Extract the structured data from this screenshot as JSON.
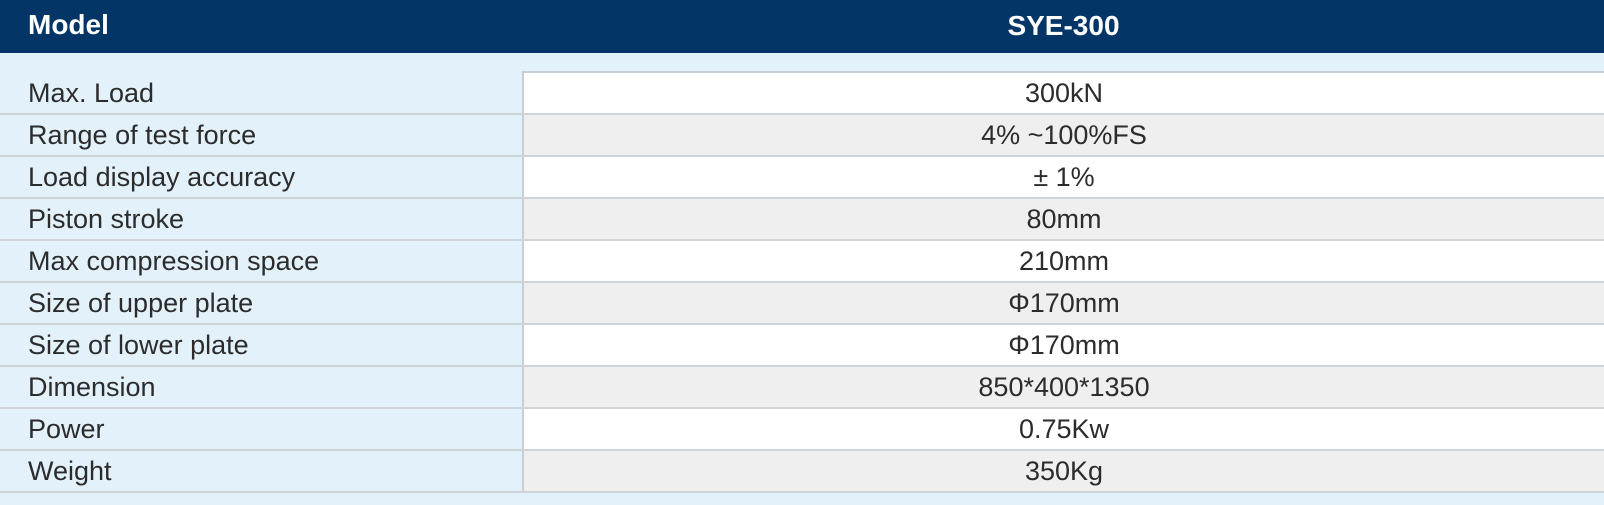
{
  "header": {
    "label": "Model",
    "value": "SYE-300"
  },
  "specs": [
    {
      "label": "Max. Load",
      "value": "300kN"
    },
    {
      "label": "Range of test force",
      "value": "4% ~100%FS"
    },
    {
      "label": "Load display accuracy",
      "value": "± 1%"
    },
    {
      "label": "Piston stroke",
      "value": "80mm"
    },
    {
      "label": "Max compression space",
      "value": "210mm"
    },
    {
      "label": "Size of upper plate",
      "value": "Φ170mm"
    },
    {
      "label": "Size of lower plate",
      "value": "Φ170mm"
    },
    {
      "label": "Dimension",
      "value": "850*400*1350"
    },
    {
      "label": "Power",
      "value": "0.75Kw"
    },
    {
      "label": "Weight",
      "value": "350Kg"
    }
  ],
  "colors": {
    "header_background": "#043567",
    "label_background": "#e3f1fb",
    "value_background_alt": "#efefef",
    "text": "#2c2c2c"
  }
}
